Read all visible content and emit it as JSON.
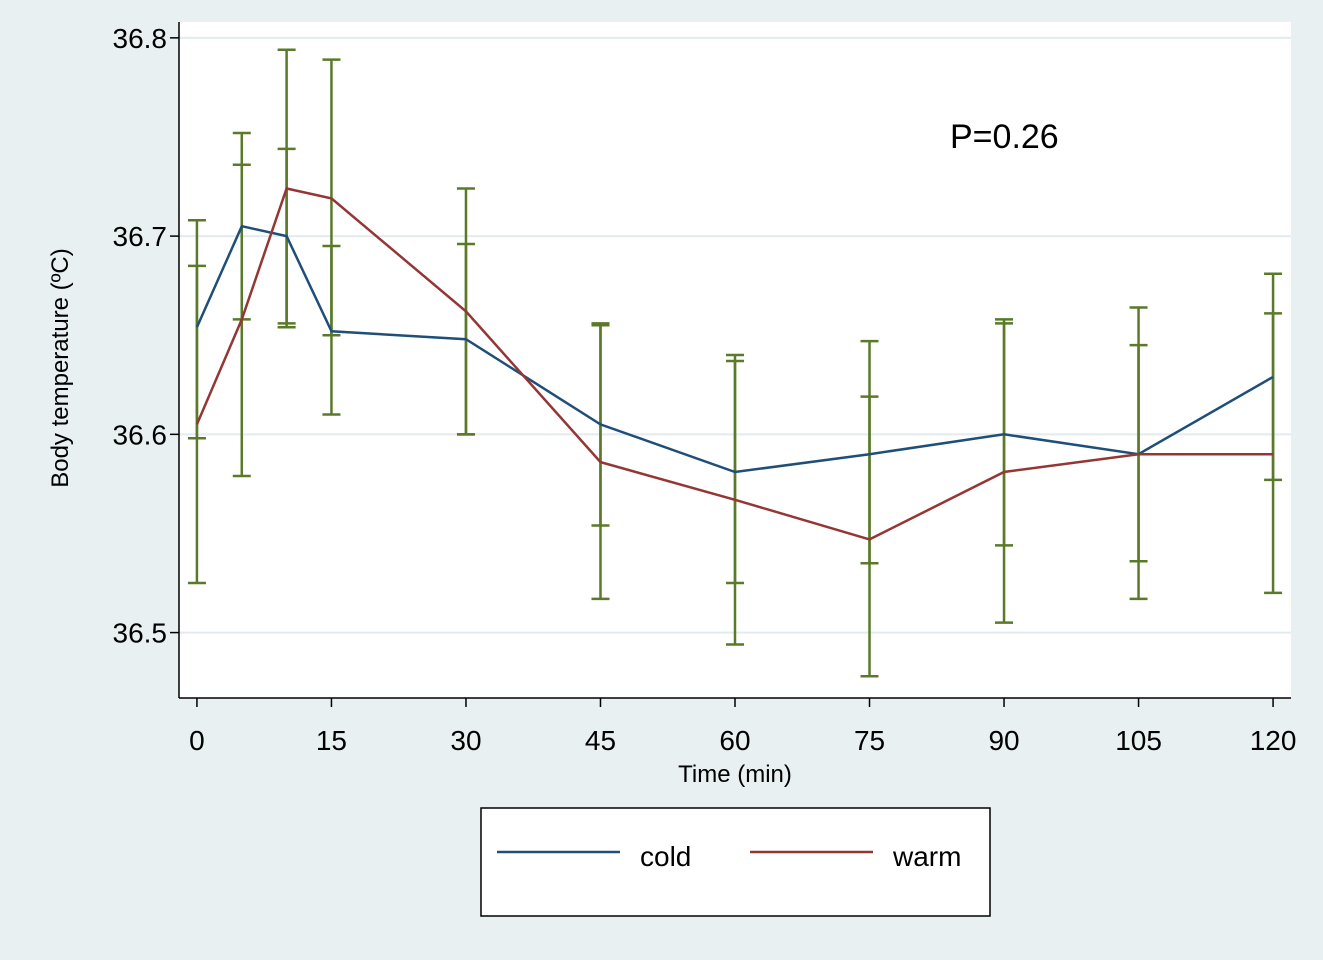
{
  "chart_data": {
    "type": "line",
    "xlabel": "Time (min)",
    "ylabel": "Body temperature (ºC)",
    "x": [
      0,
      5,
      10,
      15,
      30,
      45,
      60,
      75,
      90,
      105,
      120
    ],
    "x_ticks": [
      0,
      15,
      30,
      45,
      60,
      75,
      90,
      105,
      120
    ],
    "y_ticks": [
      36.5,
      36.6,
      36.7,
      36.8
    ],
    "xlim": [
      -2,
      122
    ],
    "ylim": [
      36.467,
      36.808
    ],
    "grid": "horizontal",
    "annotation": "P=0.26",
    "legend_position": "bottom",
    "error_bar_color": "#5a7a2a",
    "series": [
      {
        "name": "cold",
        "color": "#1f4e79",
        "values": [
          36.654,
          36.705,
          36.7,
          36.652,
          36.648,
          36.605,
          36.581,
          36.59,
          36.6,
          36.59,
          36.629
        ],
        "ci_low": [
          36.598,
          36.658,
          36.656,
          36.61,
          36.6,
          36.554,
          36.525,
          36.535,
          36.544,
          36.536,
          36.577
        ],
        "ci_high": [
          36.708,
          36.752,
          36.744,
          36.695,
          36.696,
          36.656,
          36.637,
          36.619,
          36.656,
          36.645,
          36.681
        ]
      },
      {
        "name": "warm",
        "color": "#943634",
        "values": [
          36.605,
          36.658,
          36.724,
          36.719,
          36.662,
          36.586,
          36.567,
          36.547,
          36.581,
          36.59,
          36.59
        ],
        "ci_low": [
          36.525,
          36.579,
          36.654,
          36.65,
          36.6,
          36.517,
          36.494,
          36.478,
          36.505,
          36.517,
          36.52
        ],
        "ci_high": [
          36.685,
          36.736,
          36.794,
          36.789,
          36.724,
          36.655,
          36.64,
          36.647,
          36.658,
          36.664,
          36.661
        ]
      }
    ]
  }
}
